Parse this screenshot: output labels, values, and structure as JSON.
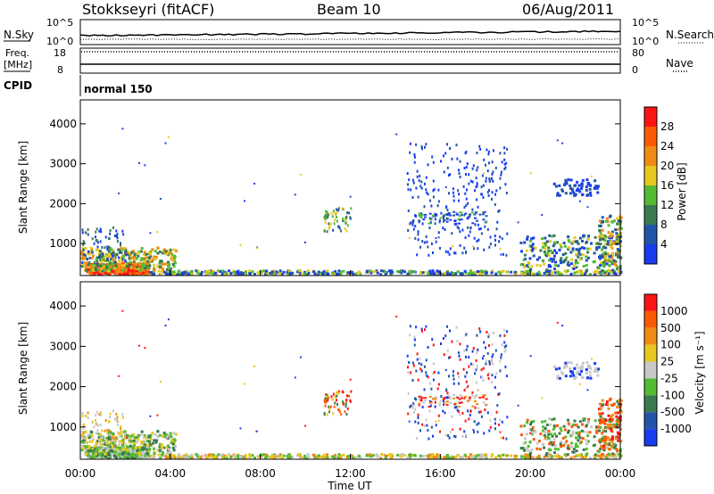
{
  "header": {
    "station": "Stokkseyri (fitACF)",
    "beam": "Beam 10",
    "date": "06/Aug/2011"
  },
  "top_panels": {
    "nsky_label": "N.Sky",
    "nsky_ticks": [
      "10^5",
      "10^0"
    ],
    "nsearch_label": "N.Search",
    "nsearch_ticks": [
      "10^5",
      "10^0"
    ],
    "freq_label_1": "Freq.",
    "freq_label_2": "[MHz]",
    "freq_ticks": [
      "18",
      "8"
    ],
    "nave_label": "Nave",
    "nave_ticks": [
      "80",
      "0"
    ],
    "cpid_label": "CPID",
    "cpid_value": "normal 150"
  },
  "chart_data": [
    {
      "type": "heatmap",
      "quantity": "power",
      "ylabel": "Slant Range [km]",
      "ylim": [
        200,
        4600
      ],
      "yticks": [
        "1000",
        "2000",
        "3000",
        "4000"
      ],
      "colorbar_label": "Power [dB]",
      "colorbar_ticks": [
        "4",
        "8",
        "12",
        "16",
        "20",
        "24",
        "28"
      ],
      "colorbar_range": [
        0,
        32
      ],
      "colors": [
        "#1a3cf0",
        "#2255aa",
        "#3a7a50",
        "#55bb33",
        "#e8c81e",
        "#f08c14",
        "#ff5a00",
        "#ff1414"
      ]
    },
    {
      "type": "heatmap",
      "quantity": "velocity",
      "ylabel": "Slant Range [km]",
      "ylim": [
        200,
        4600
      ],
      "yticks": [
        "1000",
        "2000",
        "3000",
        "4000"
      ],
      "colorbar_label": "Velocity [m s⁻¹]",
      "colorbar_ticks": [
        "1000",
        "500",
        "100",
        "25",
        "-25",
        "-100",
        "-500",
        "-1000"
      ],
      "colors": [
        "#1a3cf0",
        "#2255aa",
        "#3a7a50",
        "#55bb33",
        "#c8c8c8",
        "#e8c81e",
        "#f08c14",
        "#ff5a00",
        "#ff1414"
      ]
    }
  ],
  "xaxis": {
    "label": "Time UT",
    "ticks": [
      "00:00",
      "04:00",
      "08:00",
      "12:00",
      "16:00",
      "20:00",
      "00:00"
    ]
  }
}
